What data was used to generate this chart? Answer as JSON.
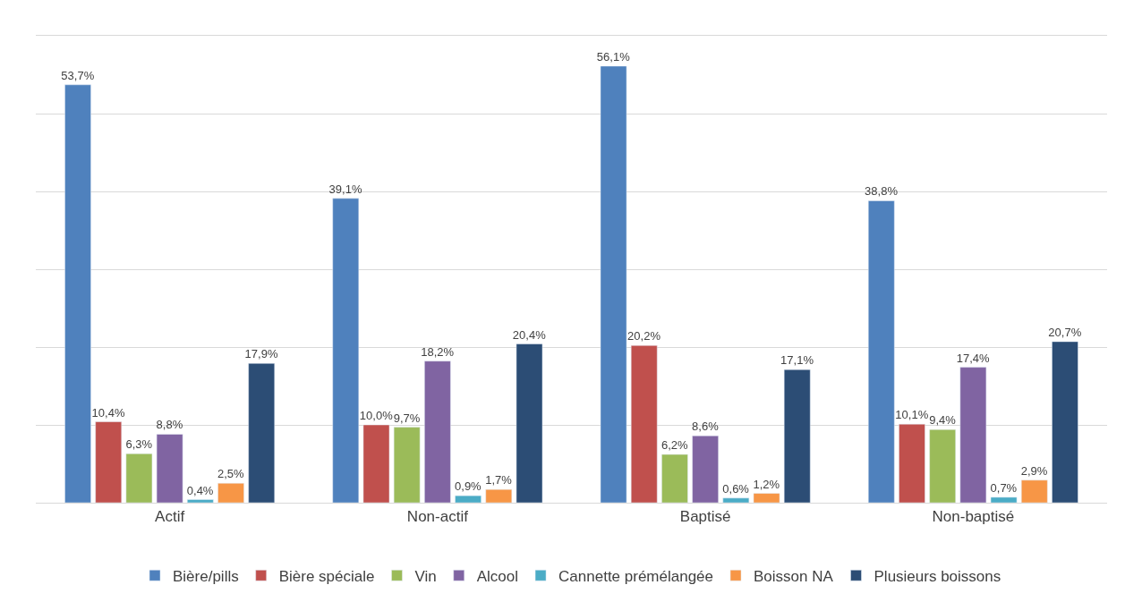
{
  "chart_data": {
    "type": "bar",
    "categories": [
      "Actif",
      "Non-actif",
      "Baptisé",
      "Non-baptisé"
    ],
    "series": [
      {
        "name": "Bière/pills",
        "color": "#4f81bd",
        "values": [
          53.7,
          39.1,
          56.1,
          38.8
        ],
        "value_labels": [
          "53,7%",
          "39,1%",
          "56,1%",
          "38,8%"
        ]
      },
      {
        "name": "Bière spéciale",
        "color": "#c0504d",
        "values": [
          10.4,
          10.0,
          20.2,
          10.1
        ],
        "value_labels": [
          "10,4%",
          "10,0%",
          "20,2%",
          "10,1%"
        ]
      },
      {
        "name": "Vin",
        "color": "#9bbb59",
        "values": [
          6.3,
          9.7,
          6.2,
          9.4
        ],
        "value_labels": [
          "6,3%",
          "9,7%",
          "6,2%",
          "9,4%"
        ]
      },
      {
        "name": "Alcool",
        "color": "#8064a2",
        "values": [
          8.8,
          18.2,
          8.6,
          17.4
        ],
        "value_labels": [
          "8,8%",
          "18,2%",
          "8,6%",
          "17,4%"
        ]
      },
      {
        "name": "Cannette prémélangée",
        "color": "#4bacc6",
        "values": [
          0.4,
          0.9,
          0.6,
          0.7
        ],
        "value_labels": [
          "0,4%",
          "0,9%",
          "0,6%",
          "0,7%"
        ]
      },
      {
        "name": "Boisson NA",
        "color": "#f79646",
        "values": [
          2.5,
          1.7,
          1.2,
          2.9
        ],
        "value_labels": [
          "2,5%",
          "1,7%",
          "1,2%",
          "2,9%"
        ]
      },
      {
        "name": "Plusieurs boissons",
        "color": "#2c4d75",
        "values": [
          17.9,
          20.4,
          17.1,
          20.7
        ],
        "value_labels": [
          "17,9%",
          "20,4%",
          "17,1%",
          "20,7%"
        ]
      }
    ],
    "ylim": [
      0,
      60
    ],
    "yticks": [
      {
        "value": 0,
        "label": null
      },
      {
        "value": 10,
        "label": null
      },
      {
        "value": 20,
        "label": null
      },
      {
        "value": 30,
        "label": null
      },
      {
        "value": 40,
        "label": null
      },
      {
        "value": 50,
        "label": null
      },
      {
        "value": 60,
        "label": null
      }
    ],
    "grid": "y",
    "legend": "bottom",
    "tick_labels": "x"
  }
}
